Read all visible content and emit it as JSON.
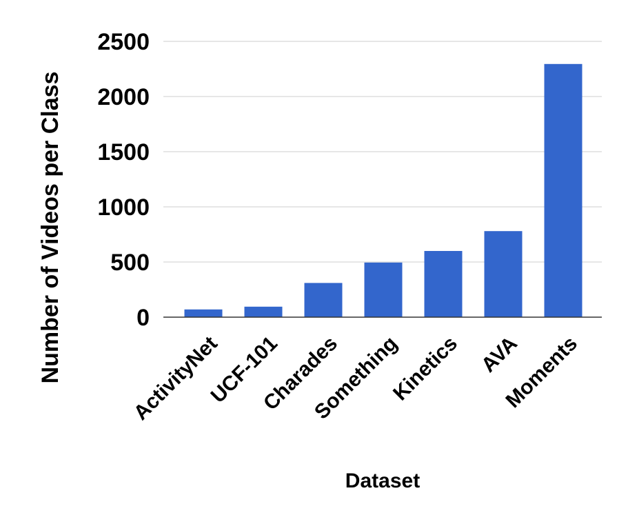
{
  "chart_data": {
    "type": "bar",
    "title": "",
    "xlabel": "Dataset",
    "ylabel": "Number of Videos per Class",
    "categories": [
      "ActivityNet",
      "UCF-101",
      "Charades",
      "Something",
      "Kinetics",
      "AVA",
      "Moments"
    ],
    "values": [
      70,
      95,
      310,
      495,
      600,
      780,
      2295
    ],
    "ylim": [
      0,
      2500
    ],
    "yticks": [
      "0",
      "500",
      "1000",
      "1500",
      "2000",
      "2500"
    ],
    "grid": true,
    "legend": "none",
    "bar_color": "#3366cc",
    "grid_color": "#cccccc",
    "axis_color": "#333333"
  }
}
